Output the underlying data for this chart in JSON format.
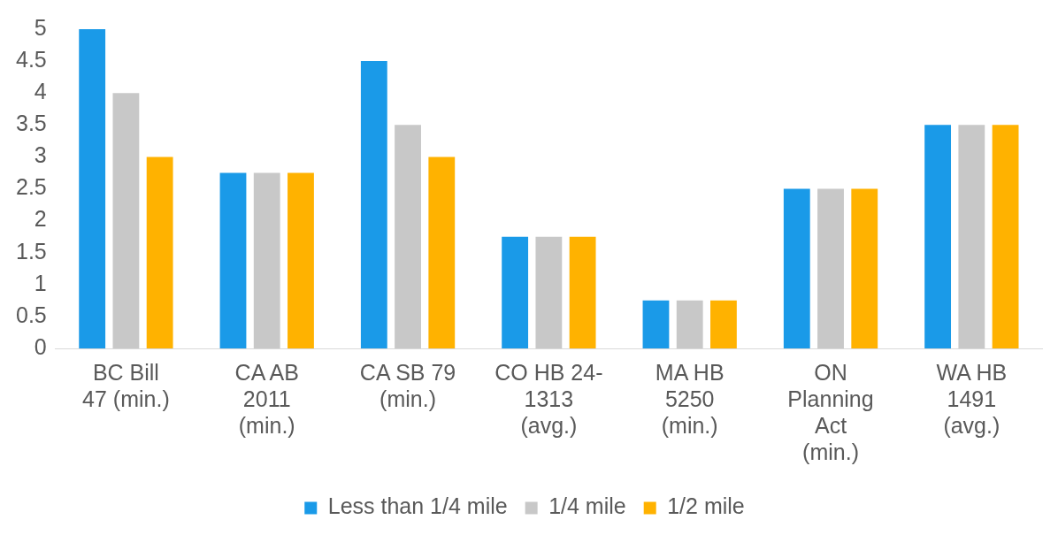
{
  "chart_data": {
    "type": "bar",
    "categories": [
      "BC Bill 47 (min.)",
      "CA AB 2011 (min.)",
      "CA SB 79 (min.)",
      "CO HB 24-1313 (avg.)",
      "MA HB 5250 (min.)",
      "ON Planning Act (min.)",
      "WA HB 1491 (avg.)"
    ],
    "series": [
      {
        "name": "Less than 1/4 mile",
        "color": "#1a9ae8",
        "values": [
          5,
          2.75,
          4.5,
          1.75,
          0.75,
          2.5,
          3.5
        ]
      },
      {
        "name": "1/4 mile",
        "color": "#c8c8c8",
        "values": [
          4,
          2.75,
          3.5,
          1.75,
          0.75,
          2.5,
          3.5
        ]
      },
      {
        "name": "1/2 mile",
        "color": "#ffb200",
        "values": [
          3,
          2.75,
          3,
          1.75,
          0.75,
          2.5,
          3.5
        ]
      }
    ],
    "ylim": [
      0,
      5
    ],
    "yticks": [
      0,
      0.5,
      1,
      1.5,
      2,
      2.5,
      3,
      3.5,
      4,
      4.5,
      5
    ],
    "grid": false,
    "legend": "bottom"
  }
}
